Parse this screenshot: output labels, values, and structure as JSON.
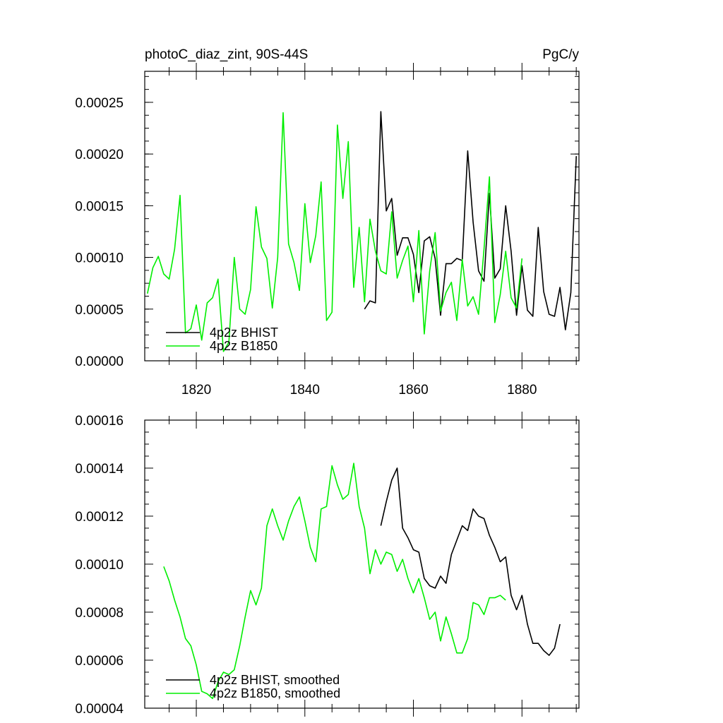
{
  "page": {
    "title_left": "photoC_diaz_zint, 90S-44S",
    "title_right": "PgC/y"
  },
  "colors": {
    "bhist": "#000000",
    "b1850": "#00ee00",
    "axis": "#000000",
    "background": "#ffffff"
  },
  "chart_data": [
    {
      "type": "line",
      "title": "photoC_diaz_zint, 90S-44S",
      "units": "PgC/y",
      "xlim": [
        1810.5,
        1890.5
      ],
      "ylim": [
        0,
        0.00028
      ],
      "x_ticks": [
        1820,
        1840,
        1860,
        1880
      ],
      "x_tick_labels": [
        "1820",
        "1840",
        "1860",
        "1880"
      ],
      "y_ticks": [
        0,
        5e-05,
        0.0001,
        0.00015,
        0.0002,
        0.00025
      ],
      "y_tick_labels": [
        "0.00000",
        "0.00005",
        "0.00010",
        "0.00015",
        "0.00020",
        "0.00025"
      ],
      "legend_position": "bottom-left",
      "series": [
        {
          "name": "4p2z BHIST",
          "color": "#000000",
          "x": [
            1851,
            1852,
            1853,
            1854,
            1855,
            1856,
            1857,
            1858,
            1859,
            1860,
            1861,
            1862,
            1863,
            1864,
            1865,
            1866,
            1867,
            1868,
            1869,
            1870,
            1871,
            1872,
            1873,
            1874,
            1875,
            1876,
            1877,
            1878,
            1879,
            1880,
            1881,
            1882,
            1883,
            1884,
            1885,
            1886,
            1887,
            1888,
            1889,
            1890
          ],
          "y": [
            5e-05,
            5.8e-05,
            5.6e-05,
            0.000241,
            0.000145,
            0.000157,
            0.000102,
            0.000119,
            0.000119,
            0.000103,
            6.6e-05,
            0.000116,
            0.00012,
            9.9e-05,
            4.4e-05,
            9.4e-05,
            9.4e-05,
            9.9e-05,
            9.7e-05,
            0.000203,
            0.000134,
            8.7e-05,
            7.7e-05,
            0.000162,
            8e-05,
            8.9e-05,
            0.00015,
            0.000106,
            4.4e-05,
            9.2e-05,
            4.9e-05,
            4.3e-05,
            0.000129,
            6.7e-05,
            4.5e-05,
            4.3e-05,
            7.1e-05,
            3e-05,
            6.6e-05,
            0.000198
          ]
        },
        {
          "name": "4p2z B1850",
          "color": "#00ee00",
          "x": [
            1811,
            1812,
            1813,
            1814,
            1815,
            1816,
            1817,
            1818,
            1819,
            1820,
            1821,
            1822,
            1823,
            1824,
            1825,
            1826,
            1827,
            1828,
            1829,
            1830,
            1831,
            1832,
            1833,
            1834,
            1835,
            1836,
            1837,
            1838,
            1839,
            1840,
            1841,
            1842,
            1843,
            1844,
            1845,
            1846,
            1847,
            1848,
            1849,
            1850,
            1851,
            1852,
            1853,
            1854,
            1855,
            1856,
            1857,
            1858,
            1859,
            1860,
            1861,
            1862,
            1863,
            1864,
            1865,
            1866,
            1867,
            1868,
            1869,
            1870,
            1871,
            1872,
            1873,
            1874,
            1875,
            1876,
            1877,
            1878,
            1879,
            1880
          ],
          "y": [
            6.5e-05,
            9e-05,
            0.000101,
            8.4e-05,
            7.9e-05,
            0.000108,
            0.00016,
            2.7e-05,
            3.1e-05,
            5.4e-05,
            2e-05,
            5.6e-05,
            6.1e-05,
            7.9e-05,
            9e-06,
            1.8e-05,
            0.0001,
            5e-05,
            4.5e-05,
            6.9e-05,
            0.000149,
            0.00011,
            9.9e-05,
            5.1e-05,
            0.0001,
            0.00024,
            0.000113,
            9.5e-05,
            6.8e-05,
            0.000152,
            9.5e-05,
            0.000121,
            0.000173,
            3.9e-05,
            4.7e-05,
            0.000228,
            0.000157,
            0.000212,
            7.1e-05,
            0.000129,
            5.7e-05,
            0.000137,
            0.000106,
            8.7e-05,
            8.4e-05,
            0.000144,
            8e-05,
            9.7e-05,
            0.000111,
            5.7e-05,
            0.000126,
            2.6e-05,
            8.7e-05,
            0.000124,
            4.8e-05,
            6.6e-05,
            7.6e-05,
            3.9e-05,
            9.8e-05,
            5.3e-05,
            6.2e-05,
            4.5e-05,
            0.000108,
            0.000178,
            3.7e-05,
            6.4e-05,
            0.000106,
            6.1e-05,
            5.1e-05,
            9.9e-05
          ]
        }
      ]
    },
    {
      "type": "line",
      "xlim": [
        1810.5,
        1890.5
      ],
      "ylim": [
        4e-05,
        0.00016
      ],
      "x_ticks": [
        1820,
        1840,
        1860,
        1880
      ],
      "x_tick_labels": [
        "",
        "",
        "",
        ""
      ],
      "y_ticks": [
        4e-05,
        6e-05,
        8e-05,
        0.0001,
        0.00012,
        0.00014,
        0.00016
      ],
      "y_tick_labels": [
        "0.00004",
        "0.00006",
        "0.00008",
        "0.00010",
        "0.00012",
        "0.00014",
        "0.00016"
      ],
      "legend_position": "bottom-left",
      "series": [
        {
          "name": "4p2z BHIST, smoothed",
          "color": "#000000",
          "x": [
            1854,
            1855,
            1856,
            1857,
            1858,
            1859,
            1860,
            1861,
            1862,
            1863,
            1864,
            1865,
            1866,
            1867,
            1868,
            1869,
            1870,
            1871,
            1872,
            1873,
            1874,
            1875,
            1876,
            1877,
            1878,
            1879,
            1880,
            1881,
            1882,
            1883,
            1884,
            1885,
            1886,
            1887
          ],
          "y": [
            0.000116,
            0.000126,
            0.000135,
            0.00014,
            0.000115,
            0.000111,
            0.000106,
            0.000105,
            9.4e-05,
            9.1e-05,
            9e-05,
            9.5e-05,
            9.2e-05,
            0.000104,
            0.00011,
            0.000116,
            0.000114,
            0.000123,
            0.00012,
            0.000119,
            0.000112,
            0.000107,
            0.000101,
            0.000103,
            8.7e-05,
            8.1e-05,
            8.7e-05,
            7.5e-05,
            6.7e-05,
            6.7e-05,
            6.4e-05,
            6.2e-05,
            6.5e-05,
            7.5e-05
          ]
        },
        {
          "name": "4p2z B1850, smoothed",
          "color": "#00ee00",
          "x": [
            1814,
            1815,
            1816,
            1817,
            1818,
            1819,
            1820,
            1821,
            1822,
            1823,
            1824,
            1825,
            1826,
            1827,
            1828,
            1829,
            1830,
            1831,
            1832,
            1833,
            1834,
            1835,
            1836,
            1837,
            1838,
            1839,
            1840,
            1841,
            1842,
            1843,
            1844,
            1845,
            1846,
            1847,
            1848,
            1849,
            1850,
            1851,
            1852,
            1853,
            1854,
            1855,
            1856,
            1857,
            1858,
            1859,
            1860,
            1861,
            1862,
            1863,
            1864,
            1865,
            1866,
            1867,
            1868,
            1869,
            1870,
            1871,
            1872,
            1873,
            1874,
            1875,
            1876,
            1877
          ],
          "y": [
            9.9e-05,
            9.3e-05,
            8.5e-05,
            7.8e-05,
            6.9e-05,
            6.6e-05,
            5.8e-05,
            4.7e-05,
            4.6e-05,
            4.4e-05,
            5.1e-05,
            5.5e-05,
            5.4e-05,
            5.6e-05,
            6.6e-05,
            7.8e-05,
            8.9e-05,
            8.3e-05,
            9e-05,
            0.000116,
            0.000123,
            0.000116,
            0.00011,
            0.000118,
            0.000124,
            0.000128,
            0.000118,
            0.000107,
            0.000101,
            0.000123,
            0.000124,
            0.000141,
            0.000133,
            0.000127,
            0.000129,
            0.000142,
            0.000124,
            0.000115,
            9.6e-05,
            0.000106,
            0.0001,
            0.000105,
            0.000104,
            9.7e-05,
            0.000102,
            9.4e-05,
            8.8e-05,
            9.4e-05,
            8.6e-05,
            7.7e-05,
            8e-05,
            6.8e-05,
            7.8e-05,
            7.1e-05,
            6.3e-05,
            6.3e-05,
            6.9e-05,
            8.4e-05,
            8.3e-05,
            7.9e-05,
            8.6e-05,
            8.6e-05,
            8.7e-05,
            8.5e-05
          ]
        }
      ]
    }
  ]
}
